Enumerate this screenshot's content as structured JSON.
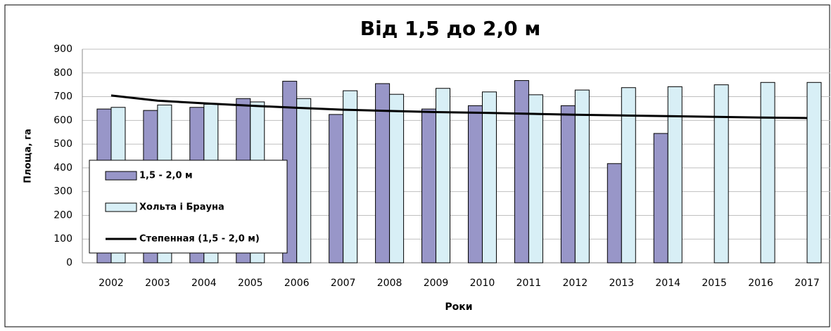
{
  "chart_data": {
    "type": "bar",
    "title": "Від 1,5 до 2,0 м",
    "x_label": "Роки",
    "y_label": "Площа, га",
    "categories": [
      "2002",
      "2003",
      "2004",
      "2005",
      "2006",
      "2007",
      "2008",
      "2009",
      "2010",
      "2011",
      "2012",
      "2013",
      "2014",
      "2015",
      "2016",
      "2017"
    ],
    "series": [
      {
        "name": "1,5 - 2,0 м",
        "type": "bar",
        "color": "#9896c8",
        "values": [
          648,
          642,
          655,
          692,
          765,
          625,
          755,
          648,
          662,
          768,
          662,
          418,
          545,
          null,
          null,
          null
        ]
      },
      {
        "name": "Хольта і Брауна",
        "type": "bar",
        "color": "#d8eff6",
        "values": [
          655,
          665,
          668,
          678,
          692,
          725,
          710,
          735,
          720,
          708,
          728,
          738,
          742,
          750,
          760,
          760
        ]
      },
      {
        "name": "Степенная (1,5 - 2,0 м)",
        "type": "line",
        "color": "#000000",
        "values": [
          705,
          683,
          672,
          662,
          653,
          645,
          640,
          635,
          632,
          628,
          624,
          621,
          618,
          615,
          612,
          610
        ]
      }
    ],
    "ylim": [
      0,
      900
    ],
    "yticks": [
      0,
      100,
      200,
      300,
      400,
      500,
      600,
      700,
      800,
      900
    ],
    "grid": true,
    "legend": "left"
  }
}
